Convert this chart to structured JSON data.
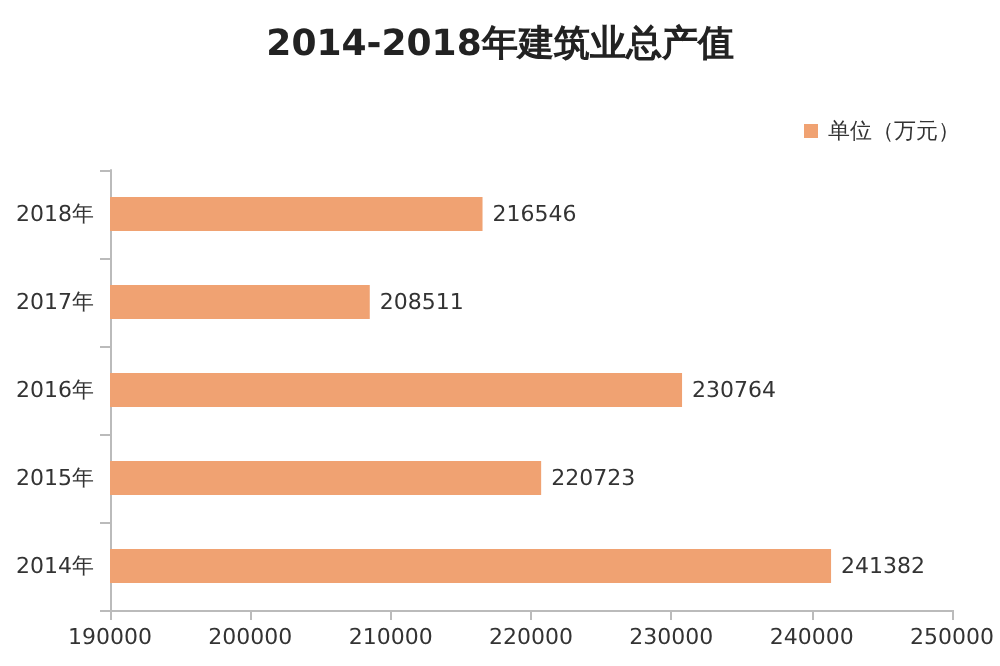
{
  "chart_data": {
    "type": "bar",
    "orientation": "horizontal",
    "title": "2014-2018年建筑业总产值",
    "categories": [
      "2018年",
      "2017年",
      "2016年",
      "2015年",
      "2014年"
    ],
    "series": [
      {
        "name": "单位（万元）",
        "color": "#f0a272",
        "values": [
          216546,
          208511,
          230764,
          220723,
          241382
        ]
      }
    ],
    "xlim": [
      190000,
      250000
    ],
    "xticks": [
      190000,
      200000,
      210000,
      220000,
      230000,
      240000,
      250000
    ],
    "data_labels": true,
    "legend": "top right",
    "grid": false
  }
}
